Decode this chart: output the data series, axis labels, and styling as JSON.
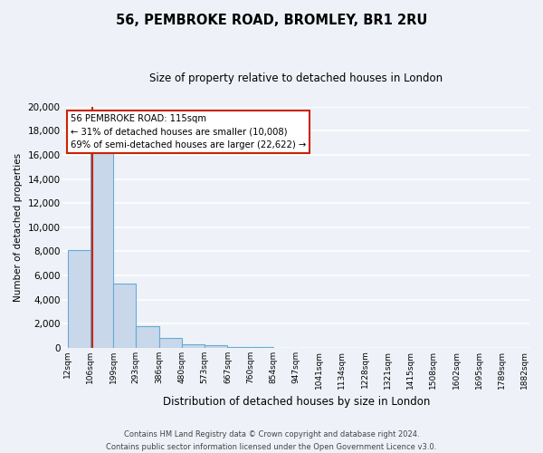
{
  "title": "56, PEMBROKE ROAD, BROMLEY, BR1 2RU",
  "subtitle": "Size of property relative to detached houses in London",
  "xlabel": "Distribution of detached houses by size in London",
  "ylabel": "Number of detached properties",
  "tick_labels": [
    "12sqm",
    "106sqm",
    "199sqm",
    "293sqm",
    "386sqm",
    "480sqm",
    "573sqm",
    "667sqm",
    "760sqm",
    "854sqm",
    "947sqm",
    "1041sqm",
    "1134sqm",
    "1228sqm",
    "1321sqm",
    "1415sqm",
    "1508sqm",
    "1602sqm",
    "1695sqm",
    "1789sqm",
    "1882sqm"
  ],
  "bar_heights": [
    8100,
    16500,
    5300,
    1750,
    800,
    280,
    175,
    90,
    90,
    0,
    0,
    0,
    0,
    0,
    0,
    0,
    0,
    0,
    0,
    0
  ],
  "bar_color": "#c8d8ea",
  "bar_edge_color": "#6aaad4",
  "property_bin": 1,
  "red_line_color": "#cc2200",
  "annotation_line1": "56 PEMBROKE ROAD: 115sqm",
  "annotation_line2": "← 31% of detached houses are smaller (10,008)",
  "annotation_line3": "69% of semi-detached houses are larger (22,622) →",
  "annotation_box_color": "#ffffff",
  "annotation_box_edge": "#cc2200",
  "ylim": [
    0,
    20000
  ],
  "yticks": [
    0,
    2000,
    4000,
    6000,
    8000,
    10000,
    12000,
    14000,
    16000,
    18000,
    20000
  ],
  "footer_line1": "Contains HM Land Registry data © Crown copyright and database right 2024.",
  "footer_line2": "Contains public sector information licensed under the Open Government Licence v3.0.",
  "background_color": "#eef2f8",
  "grid_color": "#ffffff",
  "property_size_sqm": 115,
  "bin_edges_sqm": [
    12,
    106,
    199,
    293,
    386,
    480,
    573,
    667,
    760,
    854,
    947,
    1041,
    1134,
    1228,
    1321,
    1415,
    1508,
    1602,
    1695,
    1789,
    1882
  ]
}
